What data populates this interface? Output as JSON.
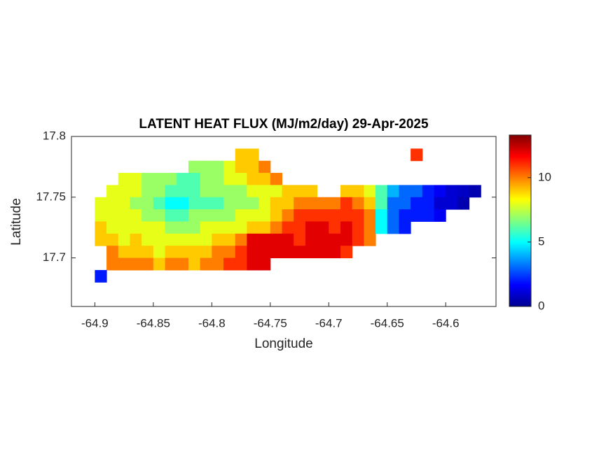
{
  "chart_data": {
    "type": "heatmap",
    "title": "LATENT HEAT FLUX (MJ/m2/day) 29-Apr-2025",
    "x_label": "Longitude",
    "y_label": "Latitude",
    "xlim": [
      -64.92,
      -64.557
    ],
    "ylim": [
      17.66,
      17.8
    ],
    "xticks": [
      -64.9,
      -64.85,
      -64.8,
      -64.75,
      -64.7,
      -64.65,
      -64.6
    ],
    "yticks": [
      17.7,
      17.75,
      17.8
    ],
    "colormap": "jet",
    "colorbar": {
      "clim": [
        0,
        13.3
      ],
      "ticks": [
        0,
        5,
        10
      ]
    },
    "x": [
      -64.895,
      -64.885,
      -64.875,
      -64.865,
      -64.855,
      -64.845,
      -64.835,
      -64.825,
      -64.815,
      -64.805,
      -64.795,
      -64.785,
      -64.775,
      -64.765,
      -64.755,
      -64.745,
      -64.735,
      -64.725,
      -64.715,
      -64.705,
      -64.695,
      -64.685,
      -64.675,
      -64.665,
      -64.655,
      -64.645,
      -64.635,
      -64.625,
      -64.615,
      -64.605,
      -64.595,
      -64.585,
      -64.575,
      -64.565
    ],
    "y": [
      17.785,
      17.775,
      17.765,
      17.755,
      17.745,
      17.735,
      17.725,
      17.715,
      17.705,
      17.695,
      17.685
    ],
    "values": [
      [
        null,
        null,
        null,
        null,
        null,
        null,
        null,
        null,
        null,
        null,
        null,
        null,
        9,
        9,
        null,
        null,
        null,
        null,
        null,
        null,
        null,
        null,
        null,
        null,
        null,
        null,
        null,
        11,
        null,
        null,
        null,
        null,
        null,
        null
      ],
      [
        null,
        null,
        null,
        null,
        null,
        null,
        null,
        null,
        7,
        7,
        7,
        8,
        9,
        9,
        10,
        null,
        null,
        null,
        null,
        null,
        null,
        null,
        null,
        null,
        null,
        null,
        null,
        null,
        null,
        null,
        null,
        null,
        null,
        null
      ],
      [
        null,
        null,
        8,
        8,
        7,
        7,
        7,
        6,
        6,
        7,
        7,
        8,
        8,
        9,
        9,
        10,
        null,
        null,
        null,
        null,
        null,
        null,
        null,
        null,
        null,
        null,
        null,
        null,
        null,
        null,
        null,
        null,
        null,
        null
      ],
      [
        null,
        8,
        8,
        8,
        7,
        7,
        6,
        6,
        6,
        7,
        7,
        7,
        7,
        8,
        8,
        8,
        9,
        9,
        9,
        null,
        null,
        9,
        9,
        8,
        6,
        4,
        3,
        3,
        2,
        1.5,
        1,
        0.8,
        0.5,
        null
      ],
      [
        8,
        8,
        8,
        7,
        7,
        6,
        5,
        5,
        6,
        6,
        6,
        7,
        7,
        7,
        8,
        9,
        9,
        10,
        10,
        10,
        10,
        11,
        10,
        9,
        6,
        3,
        3,
        2,
        2,
        1,
        1,
        0.5,
        null,
        null
      ],
      [
        8,
        8,
        8,
        8,
        7,
        7,
        6,
        6,
        7,
        7,
        7,
        7,
        8,
        8,
        8,
        9,
        10,
        11,
        11,
        11,
        11,
        11,
        11,
        10,
        5,
        3,
        2,
        2,
        2,
        1.5,
        null,
        null,
        null,
        null
      ],
      [
        9,
        8,
        8,
        8,
        8,
        8,
        7,
        7,
        7,
        8,
        8,
        8,
        8,
        9,
        9,
        10,
        11,
        11,
        12,
        12,
        11,
        12,
        11,
        10,
        5,
        3,
        2,
        null,
        null,
        null,
        null,
        null,
        null,
        null
      ],
      [
        9,
        9,
        8,
        9,
        8,
        8,
        8,
        8,
        8,
        8,
        9,
        9,
        10,
        12,
        12,
        12,
        12,
        11,
        12,
        12,
        12,
        12,
        11,
        10,
        null,
        null,
        null,
        null,
        null,
        null,
        null,
        null,
        null,
        null
      ],
      [
        null,
        10,
        9,
        9,
        9,
        8,
        9,
        9,
        9,
        9,
        10,
        10,
        11,
        12,
        12,
        12,
        12,
        12,
        12,
        12,
        12,
        11,
        null,
        null,
        null,
        null,
        null,
        null,
        null,
        null,
        null,
        null,
        null,
        null
      ],
      [
        null,
        10,
        10,
        10,
        10,
        9,
        10,
        10,
        9,
        10,
        10,
        11,
        11,
        12,
        12,
        null,
        null,
        null,
        null,
        null,
        null,
        null,
        null,
        null,
        null,
        null,
        null,
        null,
        null,
        null,
        null,
        null,
        null,
        null
      ],
      [
        2,
        null,
        null,
        null,
        null,
        null,
        null,
        null,
        null,
        null,
        null,
        null,
        null,
        null,
        null,
        null,
        null,
        null,
        null,
        null,
        null,
        null,
        null,
        null,
        null,
        null,
        null,
        null,
        null,
        null,
        null,
        null,
        null,
        null
      ]
    ]
  }
}
